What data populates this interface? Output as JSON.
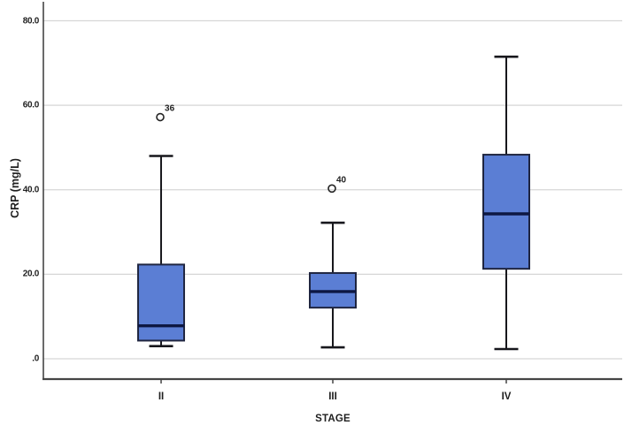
{
  "chart_data": {
    "type": "boxplot",
    "title": "",
    "xlabel": "STAGE",
    "ylabel": "CRP (mg/L)",
    "ylim": [
      -5,
      85
    ],
    "grid": true,
    "legend": false,
    "yticks": [
      {
        "value": 0,
        "label": ".0"
      },
      {
        "value": 20,
        "label": "20.0"
      },
      {
        "value": 40,
        "label": "40.0"
      },
      {
        "value": 60,
        "label": "60.0"
      },
      {
        "value": 80,
        "label": "80.0"
      }
    ],
    "categories": [
      "II",
      "III",
      "IV"
    ],
    "series": [
      {
        "category": "II",
        "whisker_low": 3.0,
        "q1": 4.3,
        "median": 7.8,
        "q3": 22.3,
        "whisker_high": 48.0,
        "outliers": [
          {
            "value": 57.2,
            "label": "36"
          }
        ]
      },
      {
        "category": "III",
        "whisker_low": 2.7,
        "q1": 12.1,
        "median": 15.9,
        "q3": 20.3,
        "whisker_high": 32.2,
        "outliers": [
          {
            "value": 40.3,
            "label": "40"
          }
        ]
      },
      {
        "category": "IV",
        "whisker_low": 2.3,
        "q1": 21.3,
        "median": 34.3,
        "q3": 48.3,
        "whisker_high": 71.5,
        "outliers": []
      }
    ],
    "colors": {
      "box_fill": "#5b7ed4",
      "box_border": "#1f2540",
      "median": "#0d1742",
      "whisker": "#17171c",
      "gridline": "#d6d6d6",
      "axis": "#454545",
      "text": "#1f1f1f",
      "outlier_stroke": "#222222",
      "background": "#ffffff"
    }
  }
}
